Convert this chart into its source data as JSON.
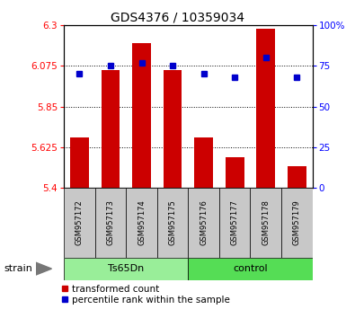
{
  "title": "GDS4376 / 10359034",
  "samples": [
    "GSM957172",
    "GSM957173",
    "GSM957174",
    "GSM957175",
    "GSM957176",
    "GSM957177",
    "GSM957178",
    "GSM957179"
  ],
  "red_values": [
    5.68,
    6.05,
    6.2,
    6.05,
    5.68,
    5.57,
    6.28,
    5.52
  ],
  "blue_values": [
    70,
    75,
    77,
    75,
    70,
    68,
    80,
    68
  ],
  "ylim_left": [
    5.4,
    6.3
  ],
  "ylim_right": [
    0,
    100
  ],
  "yticks_left": [
    5.4,
    5.625,
    5.85,
    6.075,
    6.3
  ],
  "yticks_right": [
    0,
    25,
    50,
    75,
    100
  ],
  "ytick_labels_left": [
    "5.4",
    "5.625",
    "5.85",
    "6.075",
    "6.3"
  ],
  "ytick_labels_right": [
    "0",
    "25",
    "50",
    "75",
    "100%"
  ],
  "groups": [
    {
      "label": "Ts65Dn",
      "start": 0,
      "end": 4
    },
    {
      "label": "control",
      "start": 4,
      "end": 8
    }
  ],
  "bar_color": "#cc0000",
  "dot_color": "#0000cc",
  "bar_width": 0.6,
  "legend_red_label": "transformed count",
  "legend_blue_label": "percentile rank within the sample",
  "strain_label": "strain",
  "group_color_1": "#99ee99",
  "group_color_2": "#55dd55",
  "sample_box_color": "#c8c8c8",
  "title_fontsize": 10,
  "tick_fontsize": 7.5,
  "sample_fontsize": 6,
  "group_fontsize": 8,
  "legend_fontsize": 7.5,
  "strain_fontsize": 8
}
